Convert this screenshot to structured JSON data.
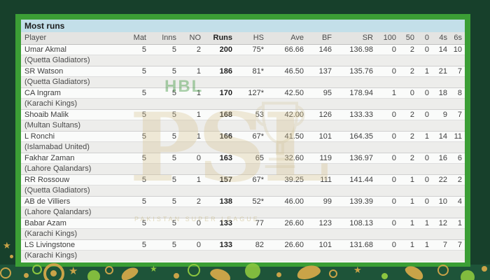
{
  "title": "Most runs",
  "watermark": {
    "hbl": "HBL",
    "psl": "PSL",
    "tagline": "PAKISTAN SUPER LEAGUE"
  },
  "decor": {
    "star": "★"
  },
  "colors": {
    "frame_green": "#3b9e35",
    "background_green": "#17402b",
    "title_bar_blue": "#c3dfe9",
    "header_gray": "#e4e4e2",
    "decor_gold": "#c9a348",
    "decor_light_green": "#8cc63f"
  },
  "table": {
    "columns": [
      "Player",
      "Mat",
      "Inns",
      "NO",
      "Runs",
      "HS",
      "Ave",
      "BF",
      "SR",
      "100",
      "50",
      "0",
      "4s",
      "6s"
    ],
    "rows": [
      {
        "player": "Umar Akmal",
        "team": "(Quetta Gladiators)",
        "cells": [
          "5",
          "5",
          "2",
          "200",
          "75*",
          "66.66",
          "146",
          "136.98",
          "0",
          "2",
          "0",
          "14",
          "10"
        ]
      },
      {
        "player": "SR Watson",
        "team": "(Quetta Gladiators)",
        "cells": [
          "5",
          "5",
          "1",
          "186",
          "81*",
          "46.50",
          "137",
          "135.76",
          "0",
          "2",
          "1",
          "21",
          "7"
        ]
      },
      {
        "player": "CA Ingram",
        "team": "(Karachi Kings)",
        "cells": [
          "5",
          "5",
          "1",
          "170",
          "127*",
          "42.50",
          "95",
          "178.94",
          "1",
          "0",
          "0",
          "18",
          "8"
        ]
      },
      {
        "player": "Shoaib Malik",
        "team": "(Multan Sultans)",
        "cells": [
          "5",
          "5",
          "1",
          "168",
          "53",
          "42.00",
          "126",
          "133.33",
          "0",
          "2",
          "0",
          "9",
          "7"
        ]
      },
      {
        "player": "L Ronchi",
        "team": "(Islamabad United)",
        "cells": [
          "5",
          "5",
          "1",
          "166",
          "67*",
          "41.50",
          "101",
          "164.35",
          "0",
          "2",
          "1",
          "14",
          "11"
        ]
      },
      {
        "player": "Fakhar Zaman",
        "team": "(Lahore Qalandars)",
        "cells": [
          "5",
          "5",
          "0",
          "163",
          "65",
          "32.60",
          "119",
          "136.97",
          "0",
          "2",
          "0",
          "16",
          "6"
        ]
      },
      {
        "player": "RR Rossouw",
        "team": "(Quetta Gladiators)",
        "cells": [
          "5",
          "5",
          "1",
          "157",
          "67*",
          "39.25",
          "111",
          "141.44",
          "0",
          "1",
          "0",
          "22",
          "2"
        ]
      },
      {
        "player": "AB de Villiers",
        "team": "(Lahore Qalandars)",
        "cells": [
          "5",
          "5",
          "2",
          "138",
          "52*",
          "46.00",
          "99",
          "139.39",
          "0",
          "1",
          "0",
          "10",
          "4"
        ]
      },
      {
        "player": "Babar Azam",
        "team": "(Karachi Kings)",
        "cells": [
          "5",
          "5",
          "0",
          "133",
          "77",
          "26.60",
          "123",
          "108.13",
          "0",
          "1",
          "1",
          "12",
          "1"
        ]
      },
      {
        "player": "LS Livingstone",
        "team": "(Karachi Kings)",
        "cells": [
          "5",
          "5",
          "0",
          "133",
          "82",
          "26.60",
          "101",
          "131.68",
          "0",
          "1",
          "1",
          "7",
          "7"
        ]
      }
    ]
  }
}
